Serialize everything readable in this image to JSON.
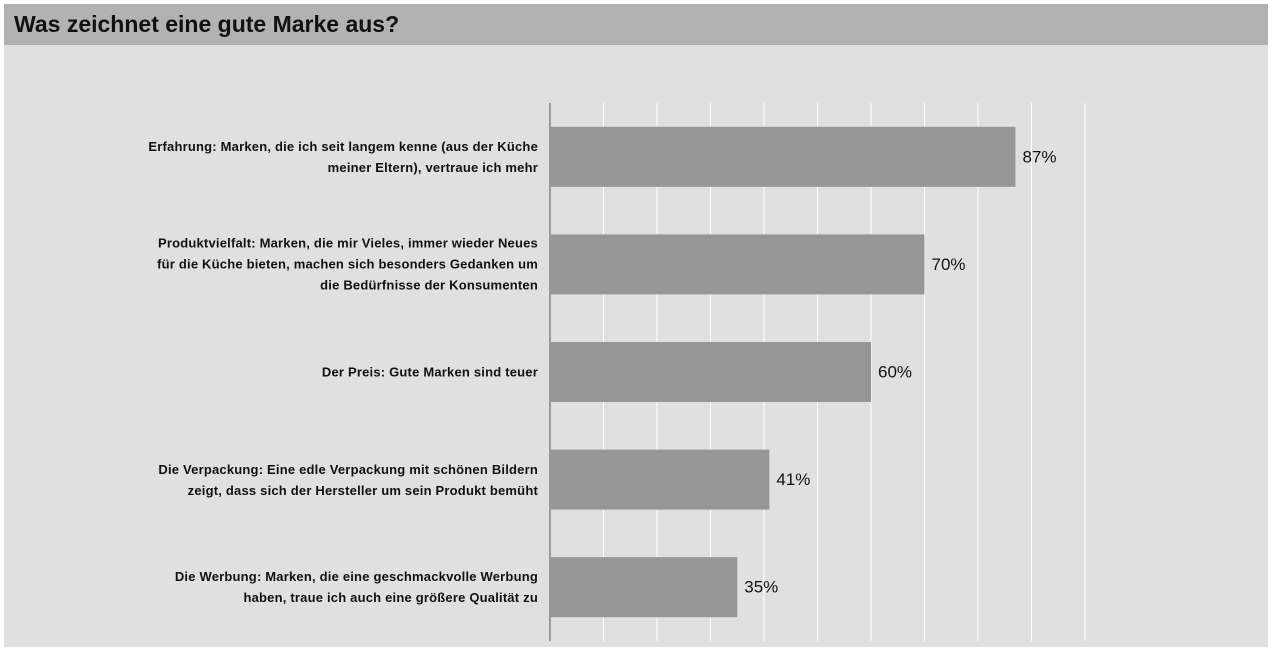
{
  "chart_data": {
    "type": "bar",
    "orientation": "horizontal",
    "title": "Was zeichnet eine gute Marke aus?",
    "categories": [
      "Erfahrung: Marken, die ich seit langem kenne (aus der Küche\nmeiner Eltern), vertraue ich mehr",
      "Produktvielfalt: Marken, die mir Vieles, immer wieder Neues\nfür die Küche bieten, machen sich besonders Gedanken um\ndie Bedürfnisse der Konsumenten",
      "Der Preis: Gute Marken sind teuer",
      "Die Verpackung: Eine edle Verpackung mit schönen Bildern\nzeigt, dass sich der Hersteller um sein Produkt bemüht",
      "Die Werbung: Marken, die eine geschmackvolle Werbung\nhaben, traue ich auch eine größere Qualität zu"
    ],
    "values": [
      87,
      70,
      60,
      41,
      35
    ],
    "value_labels": [
      "87%",
      "70%",
      "60%",
      "41%",
      "35%"
    ],
    "color": "#969696",
    "xlim": [
      0,
      100
    ],
    "xticks": [
      0,
      10,
      20,
      30,
      40,
      50,
      60,
      70,
      80,
      90,
      100
    ],
    "grid": true
  }
}
